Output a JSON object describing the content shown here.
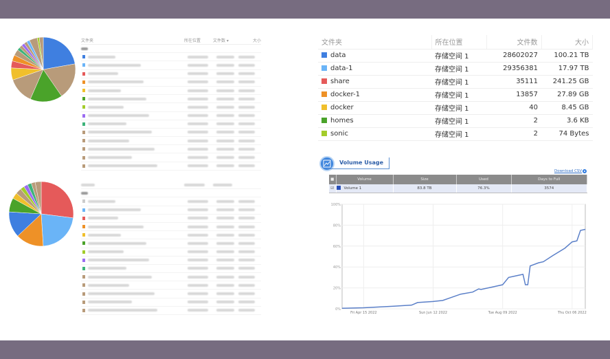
{
  "left_top_table": {
    "headers": [
      "文件夹",
      "所在位置",
      "文件数 ▾",
      "大小"
    ]
  },
  "left_colors": [
    "#3f7fe0",
    "#6ab4f7",
    "#e55a5a",
    "#ee9127",
    "#f0bf2c",
    "#4aa32a",
    "#a3cc2a",
    "#9b6cf2",
    "#3db37a",
    "#b89b7a",
    "#b89b7a",
    "#b89b7a",
    "#b89b7a",
    "#b89b7a"
  ],
  "left_bottom_colors": [
    "#cccccc",
    "#6ab4f7",
    "#e55a5a",
    "#ee9127",
    "#f0bf2c",
    "#4aa32a",
    "#a3cc2a",
    "#9b6cf2",
    "#3db37a",
    "#b89b7a",
    "#b89b7a",
    "#b89b7a",
    "#b89b7a",
    "#b89b7a"
  ],
  "pie_top": [
    {
      "v": 22,
      "c": "#3f7fe0"
    },
    {
      "v": 18,
      "c": "#b89b7a"
    },
    {
      "v": 16,
      "c": "#4aa32a"
    },
    {
      "v": 13,
      "c": "#b89b7a"
    },
    {
      "v": 6,
      "c": "#f0bf2c"
    },
    {
      "v": 3.5,
      "c": "#e55a5a"
    },
    {
      "v": 3,
      "c": "#ee9127"
    },
    {
      "v": 3,
      "c": "#b89b7a"
    },
    {
      "v": 1.5,
      "c": "#3db37a"
    },
    {
      "v": 1.5,
      "c": "#b89b7a"
    },
    {
      "v": 1.5,
      "c": "#9b6cf2"
    },
    {
      "v": 1.5,
      "c": "#b89b7a"
    },
    {
      "v": 1.5,
      "c": "#6ab4f7"
    },
    {
      "v": 4,
      "c": "#b89b7a"
    },
    {
      "v": 1,
      "c": "#a3cc2a"
    },
    {
      "v": 2,
      "c": "#b89b7a"
    }
  ],
  "pie_bottom": [
    {
      "v": 27,
      "c": "#e55a5a"
    },
    {
      "v": 22,
      "c": "#6ab4f7"
    },
    {
      "v": 14,
      "c": "#ee9127"
    },
    {
      "v": 13,
      "c": "#3f7fe0"
    },
    {
      "v": 7,
      "c": "#4aa32a"
    },
    {
      "v": 3,
      "c": "#f0bf2c"
    },
    {
      "v": 3,
      "c": "#b89b7a"
    },
    {
      "v": 2,
      "c": "#a3cc2a"
    },
    {
      "v": 2,
      "c": "#9b6cf2"
    },
    {
      "v": 2,
      "c": "#3db37a"
    },
    {
      "v": 2,
      "c": "#b89b7a"
    },
    {
      "v": 3,
      "c": "#b89b7a"
    }
  ],
  "folders": {
    "headers": {
      "name": "文件夹",
      "location": "所在位置",
      "files": "文件数",
      "size": "大小"
    },
    "rows": [
      {
        "name": "data",
        "color": "#3f7fe0",
        "location": "存储空间 1",
        "files": "28602027",
        "size": "100.21 TB"
      },
      {
        "name": "data-1",
        "color": "#6ab4f7",
        "location": "存储空间 1",
        "files": "29356381",
        "size": "17.97 TB"
      },
      {
        "name": "share",
        "color": "#e55a5a",
        "location": "存储空间 1",
        "files": "35111",
        "size": "241.25 GB"
      },
      {
        "name": "docker-1",
        "color": "#ee9127",
        "location": "存储空间 1",
        "files": "13857",
        "size": "27.89 GB"
      },
      {
        "name": "docker",
        "color": "#f0bf2c",
        "location": "存储空间 1",
        "files": "40",
        "size": "8.45 GB"
      },
      {
        "name": "homes",
        "color": "#4aa32a",
        "location": "存储空间 1",
        "files": "2",
        "size": "3.6 KB"
      },
      {
        "name": "sonic",
        "color": "#a3cc2a",
        "location": "存储空间 1",
        "files": "2",
        "size": "74 Bytes"
      }
    ]
  },
  "volume_usage": {
    "title": "Volume Usage",
    "download": "Download CSV",
    "headers": [
      "Volume",
      "Size",
      "Used",
      "Days to Full"
    ],
    "row": {
      "volume": "Volume 1",
      "size": "83.8 TB",
      "used": "76.3%",
      "days": "3574",
      "color": "#2a50b8"
    }
  },
  "chart_data": {
    "type": "line",
    "xlabel": "",
    "ylabel": "",
    "ylim": [
      0,
      100
    ],
    "grid": true,
    "yticks": [
      "0%",
      "20%",
      "40%",
      "60%",
      "80%",
      "100%"
    ],
    "xticks": [
      {
        "date": "2022-04-15",
        "label": "Fri Apr 15 2022"
      },
      {
        "date": "2022-06-12",
        "label": "Sun Jun 12 2022"
      },
      {
        "date": "2022-08-09",
        "label": "Tue Aug 09 2022"
      },
      {
        "date": "2022-10-06",
        "label": "Thu Oct 06 2022"
      }
    ],
    "xlim": [
      "2022-03-28",
      "2022-10-17"
    ],
    "series": [
      {
        "name": "Volume 1",
        "color": "#5a7fc8",
        "points": [
          [
            "2022-03-28",
            0.5
          ],
          [
            "2022-04-15",
            1
          ],
          [
            "2022-05-10",
            2.5
          ],
          [
            "2022-05-25",
            3.5
          ],
          [
            "2022-05-30",
            6
          ],
          [
            "2022-06-12",
            7
          ],
          [
            "2022-06-20",
            8
          ],
          [
            "2022-06-25",
            10
          ],
          [
            "2022-07-05",
            14
          ],
          [
            "2022-07-15",
            16
          ],
          [
            "2022-07-20",
            19
          ],
          [
            "2022-07-22",
            18.5
          ],
          [
            "2022-08-01",
            21
          ],
          [
            "2022-08-09",
            23
          ],
          [
            "2022-08-14",
            30
          ],
          [
            "2022-08-22",
            32
          ],
          [
            "2022-08-26",
            33
          ],
          [
            "2022-08-28",
            23
          ],
          [
            "2022-08-30",
            23
          ],
          [
            "2022-09-01",
            41
          ],
          [
            "2022-09-08",
            44
          ],
          [
            "2022-09-12",
            45
          ],
          [
            "2022-09-20",
            51
          ],
          [
            "2022-09-30",
            58
          ],
          [
            "2022-10-06",
            64
          ],
          [
            "2022-10-10",
            65
          ],
          [
            "2022-10-13",
            75
          ],
          [
            "2022-10-17",
            76
          ]
        ]
      }
    ]
  }
}
